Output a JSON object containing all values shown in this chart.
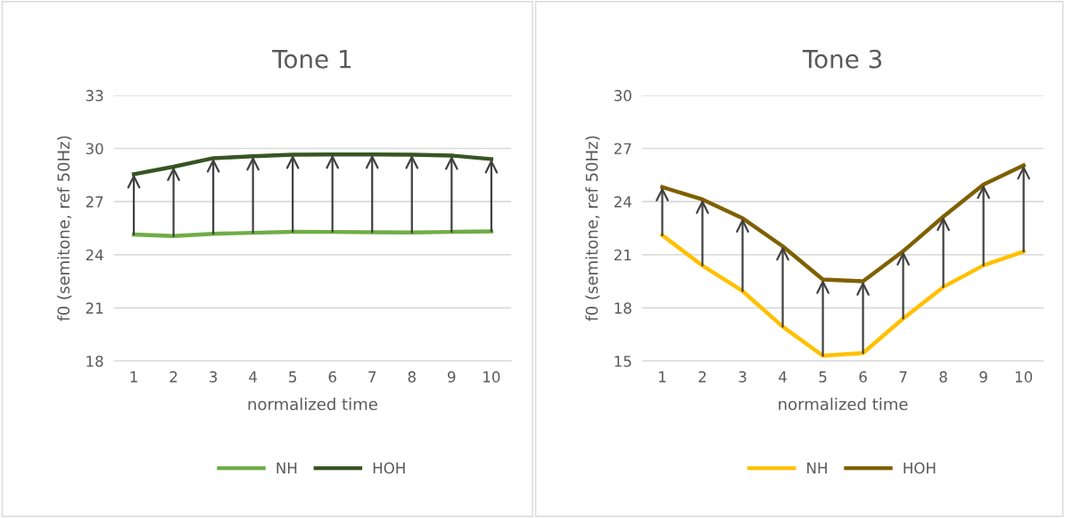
{
  "chart_data": [
    {
      "type": "line",
      "title": "Tone 1",
      "xlabel": "normalized time",
      "ylabel": "f0 (semitone, ref 50Hz)",
      "categories": [
        "1",
        "2",
        "3",
        "4",
        "5",
        "6",
        "7",
        "8",
        "9",
        "10"
      ],
      "series": [
        {
          "name": "NH",
          "color": "#70ad47",
          "values": [
            25.14,
            25.06,
            25.18,
            25.24,
            25.3,
            25.29,
            25.27,
            25.26,
            25.29,
            25.32
          ]
        },
        {
          "name": "HOH",
          "color": "#375623",
          "values": [
            28.55,
            28.97,
            29.45,
            29.56,
            29.65,
            29.66,
            29.66,
            29.65,
            29.6,
            29.4
          ]
        }
      ],
      "ylim": [
        18,
        33
      ],
      "yticks": [
        18,
        21,
        24,
        27,
        30,
        33
      ],
      "grid": "y",
      "legend": "bottom",
      "marker": "none",
      "line_style": "solid"
    },
    {
      "type": "line",
      "title": "Tone 3",
      "xlabel": "normalized time",
      "ylabel": "f0 (semitone, ref 50Hz)",
      "categories": [
        "1",
        "2",
        "3",
        "4",
        "5",
        "6",
        "7",
        "8",
        "9",
        "10"
      ],
      "series": [
        {
          "name": "NH",
          "color": "#ffc000",
          "values": [
            22.1,
            20.39,
            18.95,
            16.94,
            15.3,
            15.45,
            17.4,
            19.18,
            20.4,
            21.18
          ]
        },
        {
          "name": "HOH",
          "color": "#7f6000",
          "values": [
            24.82,
            24.12,
            23.06,
            21.48,
            19.6,
            19.5,
            21.2,
            23.15,
            24.96,
            26.05
          ]
        }
      ],
      "ylim": [
        15,
        30
      ],
      "yticks": [
        15,
        18,
        21,
        24,
        27,
        30
      ],
      "grid": "y",
      "legend": "bottom",
      "marker": "none",
      "line_style": "solid"
    }
  ]
}
